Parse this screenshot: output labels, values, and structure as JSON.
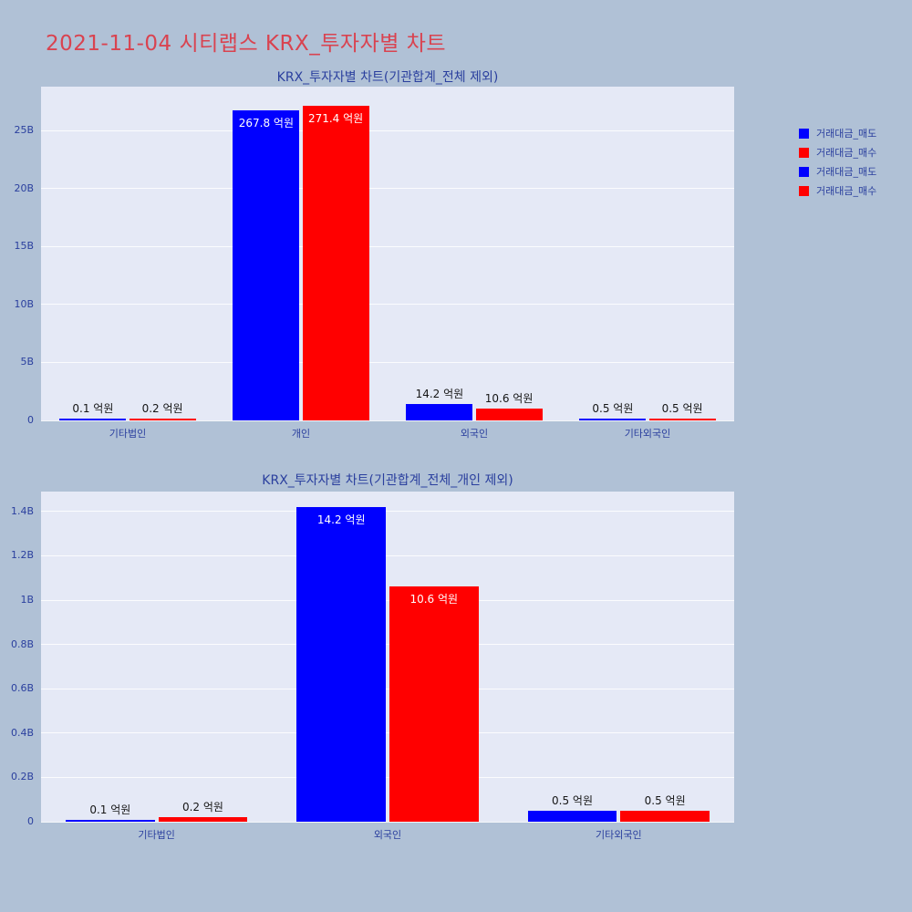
{
  "page": {
    "title": "2021-11-04 시티랩스 KRX_투자자별 차트",
    "colors": {
      "background": "#b0c1d6",
      "plot_background": "#e5e9f6",
      "title_color": "#d94350",
      "axis_text_color": "#2a3f9e",
      "sell_color": "#0000ff",
      "buy_color": "#ff0000"
    }
  },
  "legend": {
    "items": [
      {
        "label": "거래대금_매도",
        "color": "#0000ff"
      },
      {
        "label": "거래대금_매수",
        "color": "#ff0000"
      },
      {
        "label": "거래대금_매도",
        "color": "#0000ff"
      },
      {
        "label": "거래대금_매수",
        "color": "#ff0000"
      }
    ]
  },
  "chart_data": [
    {
      "type": "bar",
      "title": "KRX_투자자별 차트(기관합계_전체 제외)",
      "categories": [
        "기타법인",
        "개인",
        "외국인",
        "기타외국인"
      ],
      "series": [
        {
          "name": "거래대금_매도",
          "color": "#0000ff",
          "values_B": [
            0.01,
            26.78,
            1.42,
            0.05
          ],
          "labels": [
            "0.1 억원",
            "267.8 억원",
            "14.2 억원",
            "0.5 억원"
          ]
        },
        {
          "name": "거래대금_매수",
          "color": "#ff0000",
          "values_B": [
            0.02,
            27.14,
            1.06,
            0.05
          ],
          "labels": [
            "0.2 억원",
            "271.4 억원",
            "10.6 억원",
            "0.5 억원"
          ]
        }
      ],
      "ylim_B": [
        0,
        28.8
      ],
      "yticks": [
        {
          "v": 0,
          "label": "0"
        },
        {
          "v": 5,
          "label": "5B"
        },
        {
          "v": 10,
          "label": "10B"
        },
        {
          "v": 15,
          "label": "15B"
        },
        {
          "v": 20,
          "label": "20B"
        },
        {
          "v": 25,
          "label": "25B"
        }
      ],
      "grid": true,
      "legend_position": "top-right"
    },
    {
      "type": "bar",
      "title": "KRX_투자자별 차트(기관합계_전체_개인 제외)",
      "categories": [
        "기타법인",
        "외국인",
        "기타외국인"
      ],
      "series": [
        {
          "name": "거래대금_매도",
          "color": "#0000ff",
          "values_B": [
            0.01,
            1.42,
            0.05
          ],
          "labels": [
            "0.1 억원",
            "14.2 억원",
            "0.5 억원"
          ]
        },
        {
          "name": "거래대금_매수",
          "color": "#ff0000",
          "values_B": [
            0.02,
            1.06,
            0.05
          ],
          "labels": [
            "0.2 억원",
            "10.6 억원",
            "0.5 억원"
          ]
        }
      ],
      "ylim_B": [
        0,
        1.49
      ],
      "yticks": [
        {
          "v": 0,
          "label": "0"
        },
        {
          "v": 0.2,
          "label": "0.2B"
        },
        {
          "v": 0.4,
          "label": "0.4B"
        },
        {
          "v": 0.6,
          "label": "0.6B"
        },
        {
          "v": 0.8,
          "label": "0.8B"
        },
        {
          "v": 1,
          "label": "1B"
        },
        {
          "v": 1.2,
          "label": "1.2B"
        },
        {
          "v": 1.4,
          "label": "1.4B"
        }
      ],
      "grid": true,
      "legend_position": "top-right"
    }
  ]
}
